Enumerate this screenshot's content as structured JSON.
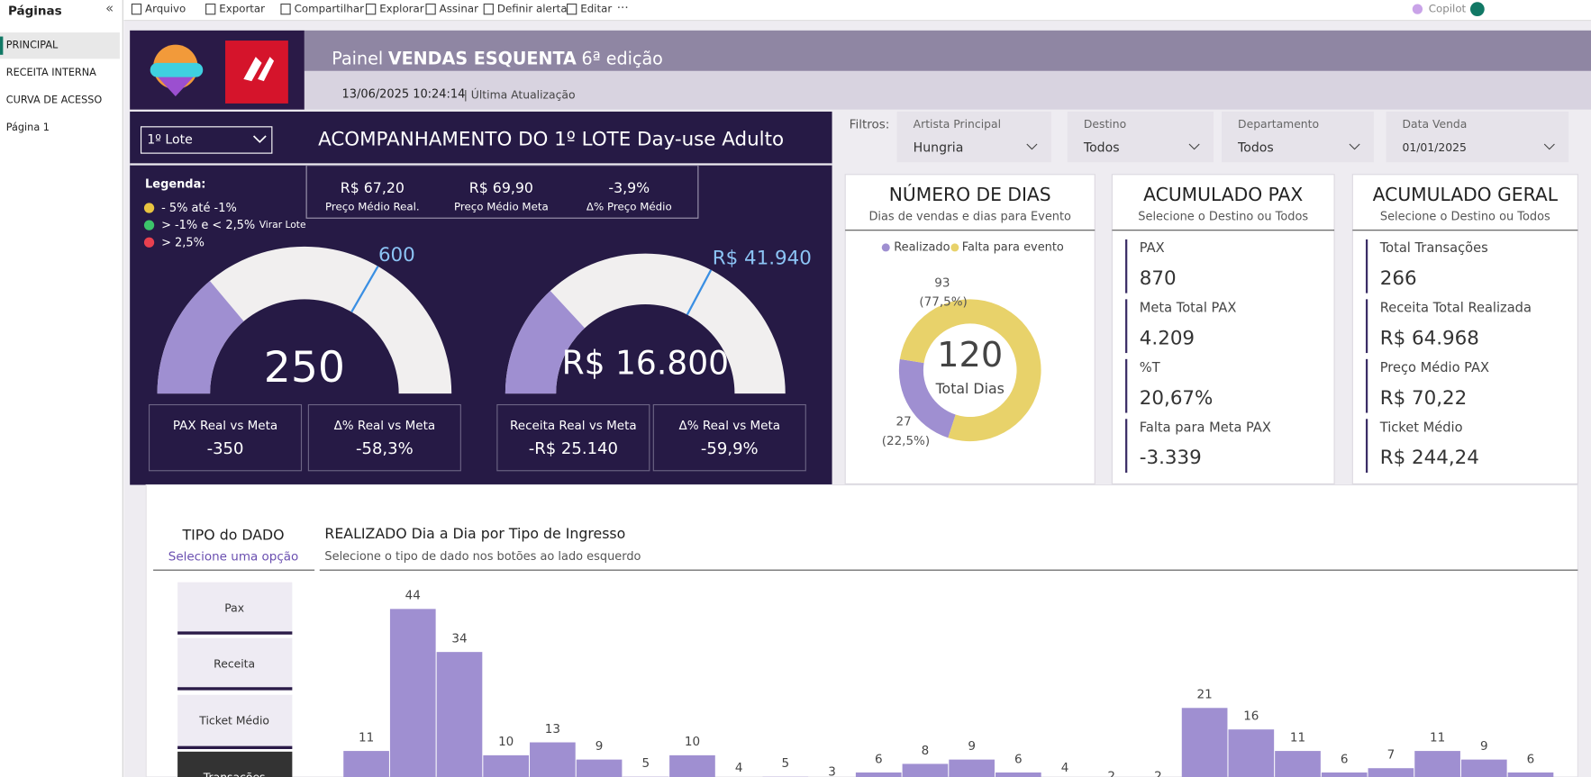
{
  "toolbar": {
    "items": [
      "Arquivo",
      "Exportar",
      "Compartilhar",
      "Explorar",
      "Assinar",
      "Definir alerta",
      "Editar"
    ],
    "copilot": "Copilot"
  },
  "sidebar": {
    "title": "Páginas",
    "pages": [
      "PRINCIPAL",
      "RECEITA INTERNA",
      "CURVA DE ACESSO",
      "Página 1"
    ]
  },
  "header": {
    "title_prefix": "Painel",
    "title_bold": "VENDAS ESQUENTA",
    "title_suffix": "6ª edição",
    "timestamp": "13/06/2025 10:24:14",
    "update_label": "| Última Atualização"
  },
  "lote": {
    "dropdown": "1º Lote",
    "title": "ACOMPANHAMENTO DO 1º LOTE Day-use Adulto"
  },
  "filters": {
    "label": "Filtros:",
    "items": [
      {
        "label": "Artista Principal",
        "value": "Hungria"
      },
      {
        "label": "Destino",
        "value": "Todos"
      },
      {
        "label": "Departamento",
        "value": "Todos"
      },
      {
        "label": "Data Venda",
        "value": "01/01/2025"
      }
    ]
  },
  "legend": {
    "title": "Legenda:",
    "items": [
      {
        "text": "- 5% até -1%",
        "color": "#e9c440"
      },
      {
        "text": "> -1% e < 2,5%",
        "note": "Virar Lote",
        "color": "#3cc46a"
      },
      {
        "text": "> 2,5%",
        "color": "#e8404f"
      }
    ]
  },
  "prices": [
    {
      "value": "R$ 67,20",
      "label": "Preço Médio Real."
    },
    {
      "value": "R$ 69,90",
      "label": "Preço Médio Meta"
    },
    {
      "value": "-3,9%",
      "label": "Δ% Preço Médio"
    }
  ],
  "gauges": [
    {
      "value": 250,
      "value_label": "250",
      "target": 600,
      "target_label": "600",
      "range": [
        0,
        900
      ],
      "cards": [
        {
          "label": "PAX Real vs Meta",
          "value": "-350"
        },
        {
          "label": "Δ% Real vs Meta",
          "value": "-58,3%"
        }
      ]
    },
    {
      "value": 16800,
      "value_label": "R$ 16.800",
      "target": 41940,
      "target_label": "R$ 41.940",
      "range": [
        0,
        64000
      ],
      "cards": [
        {
          "label": "Receita Real vs Meta",
          "value": "-R$ 25.140"
        },
        {
          "label": "Δ% Real vs Meta",
          "value": "-59,9%"
        }
      ]
    }
  ],
  "dias": {
    "title": "NÚMERO DE DIAS",
    "subtitle": "Dias de vendas e dias para Evento",
    "series": [
      {
        "name": "Realizado",
        "color": "#9f8fd1",
        "value": 27,
        "share": "(22,5%)"
      },
      {
        "name": "Falta para evento",
        "color": "#e8d26a",
        "value": 93,
        "share": "(77,5%)"
      }
    ],
    "total": 120,
    "total_label": "Total Dias"
  },
  "pax": {
    "title": "ACUMULADO PAX",
    "subtitle": "Selecione o Destino ou Todos",
    "rows": [
      {
        "label": "PAX",
        "value": "870"
      },
      {
        "label": "Meta Total PAX",
        "value": "4.209"
      },
      {
        "label": "%T",
        "value": "20,67%"
      },
      {
        "label": "Falta para Meta PAX",
        "value": "-3.339"
      }
    ]
  },
  "geral": {
    "title": "ACUMULADO GERAL",
    "subtitle": "Selecione o Destino ou Todos",
    "rows": [
      {
        "label": "Total Transações",
        "value": "266"
      },
      {
        "label": "Receita Total Realizada",
        "value": "R$ 64.968"
      },
      {
        "label": "Preço Médio PAX",
        "value": "R$ 70,22"
      },
      {
        "label": "Ticket Médio",
        "value": "R$ 244,24"
      }
    ]
  },
  "tipo": {
    "title": "TIPO do DADO",
    "subtitle": "Selecione uma opção",
    "buttons": [
      "Pax",
      "Receita",
      "Ticket Médio",
      "Transações"
    ]
  },
  "chart": {
    "type": "bar",
    "title": "REALIZADO Dia a Dia por Tipo de Ingresso",
    "subtitle": "Selecione o tipo de dado nos botões ao lado esquerdo",
    "color": "#9f8fd1",
    "values": [
      11,
      44,
      34,
      10,
      13,
      9,
      5,
      10,
      4,
      5,
      3,
      6,
      8,
      9,
      6,
      4,
      2,
      2,
      21,
      16,
      11,
      6,
      7,
      11,
      9,
      6
    ]
  }
}
